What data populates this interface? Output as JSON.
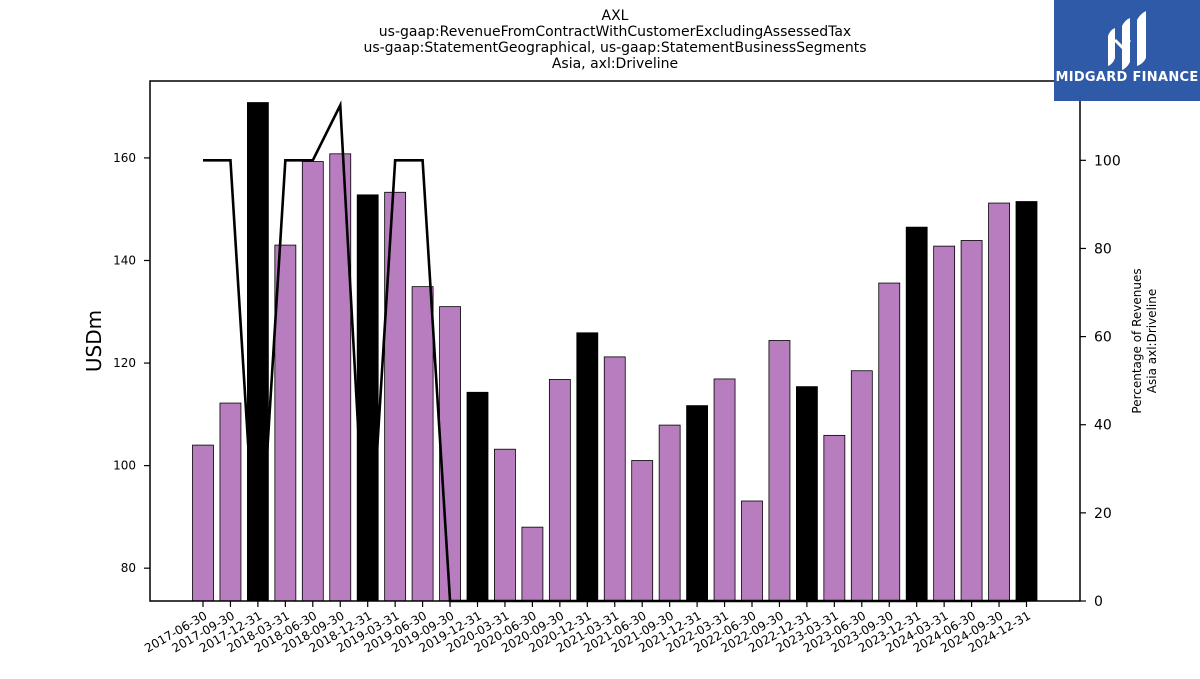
{
  "title_lines": [
    "AXL",
    "us-gaap:RevenueFromContractWithCustomerExcludingAssessedTax",
    "us-gaap:StatementGeographical, us-gaap:StatementBusinessSegments",
    "Asia, axl:Driveline"
  ],
  "logo": {
    "text": "MIDGARD FINANCE",
    "background": "#2e5aa8"
  },
  "colors": {
    "bar_default": "#b87dbe",
    "bar_highlight": "#000000",
    "line": "#000000"
  },
  "chart_data": {
    "type": "bar",
    "categories": [
      "2017-06-30",
      "2017-09-30",
      "2017-12-31",
      "2018-03-31",
      "2018-06-30",
      "2018-09-30",
      "2018-12-31",
      "2019-03-31",
      "2019-06-30",
      "2019-09-30",
      "2019-12-31",
      "2020-03-31",
      "2020-06-30",
      "2020-09-30",
      "2020-12-31",
      "2021-03-31",
      "2021-06-30",
      "2021-09-30",
      "2021-12-31",
      "2022-03-31",
      "2022-06-30",
      "2022-09-30",
      "2022-12-31",
      "2023-03-31",
      "2023-06-30",
      "2023-09-30",
      "2023-12-31",
      "2024-03-31",
      "2024-06-30",
      "2024-09-30",
      "2024-12-31"
    ],
    "values": [
      104,
      112.2,
      170.8,
      143,
      159.3,
      160.8,
      152.8,
      153.3,
      134.9,
      131,
      114.3,
      103.2,
      88,
      116.8,
      125.9,
      121.2,
      101,
      107.9,
      111.7,
      116.9,
      93.1,
      124.4,
      115.4,
      105.9,
      118.5,
      135.6,
      146.5,
      142.8,
      143.9,
      151.2,
      151.5
    ],
    "highlight": [
      false,
      false,
      true,
      false,
      false,
      false,
      true,
      false,
      false,
      false,
      true,
      false,
      false,
      false,
      true,
      false,
      false,
      false,
      true,
      false,
      false,
      false,
      true,
      false,
      false,
      false,
      true,
      false,
      false,
      false,
      true
    ],
    "ylabel": "USDm",
    "ylim": [
      73.6,
      175
    ],
    "yticks": [
      80,
      100,
      120,
      140,
      160
    ],
    "secondary": {
      "type": "line",
      "label_lines": [
        "Percentage of Revenues",
        "Asia axl:Driveline"
      ],
      "values": [
        100,
        100,
        0,
        100,
        100,
        112.5,
        0,
        100,
        100,
        0,
        0,
        0,
        0,
        0,
        0,
        0,
        0,
        0,
        0,
        0,
        0,
        0,
        0,
        0,
        0,
        0,
        0,
        0,
        0,
        0,
        0
      ],
      "ylim": [
        0,
        118
      ],
      "yticks": [
        0,
        20,
        40,
        60,
        80,
        100
      ]
    },
    "grid": false,
    "legend": "none"
  }
}
